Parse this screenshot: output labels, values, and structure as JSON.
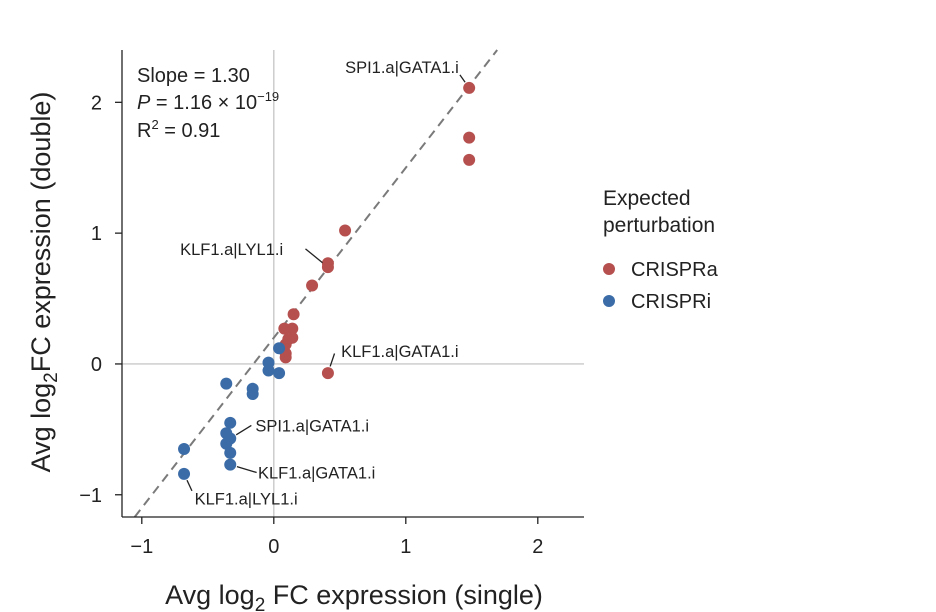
{
  "chart_data": {
    "type": "scatter",
    "xlabel": {
      "prefix": "Avg log",
      "sub": "2",
      "suffix": " FC expression (single)"
    },
    "ylabel": {
      "prefix": "Avg log",
      "sub": "2",
      "suffix": "FC expression (double)"
    },
    "xlim": [
      -1.15,
      2.35
    ],
    "ylim": [
      -1.17,
      2.4
    ],
    "xticks": [
      -1,
      0,
      1,
      2
    ],
    "yticks": [
      -1,
      0,
      1,
      2
    ],
    "xtick_labels": [
      "−1",
      "0",
      "1",
      "2"
    ],
    "ytick_labels": [
      "−1",
      "0",
      "1",
      "2"
    ],
    "reference_lines": {
      "x": 0,
      "y": 0
    },
    "fit_line": {
      "slope": 1.3,
      "intercept": 0.2,
      "style": "dashed"
    },
    "stats": {
      "slope": "Slope = 1.30",
      "p_label": "P",
      "p_value": " = 1.16 × 10",
      "p_exp": "−19",
      "r2_label": "R",
      "r2_exp": "2",
      "r2_value": " = 0.91"
    },
    "legend": {
      "title_line1": "Expected",
      "title_line2": "perturbation",
      "placement": "right",
      "items": [
        {
          "label": "CRISPRa",
          "color": "#b5504f"
        },
        {
          "label": "CRISPRi",
          "color": "#3b6ca8"
        }
      ]
    },
    "series": [
      {
        "name": "CRISPRa",
        "color": "#b5504f",
        "points": [
          {
            "x": 1.48,
            "y": 2.11
          },
          {
            "x": 1.48,
            "y": 1.73
          },
          {
            "x": 1.48,
            "y": 1.56
          },
          {
            "x": 0.54,
            "y": 1.02
          },
          {
            "x": 0.41,
            "y": 0.77
          },
          {
            "x": 0.41,
            "y": 0.74
          },
          {
            "x": 0.29,
            "y": 0.6
          },
          {
            "x": 0.15,
            "y": 0.38
          },
          {
            "x": 0.08,
            "y": 0.27
          },
          {
            "x": 0.14,
            "y": 0.27
          },
          {
            "x": 0.14,
            "y": 0.2
          },
          {
            "x": 0.11,
            "y": 0.19
          },
          {
            "x": 0.09,
            "y": 0.15
          },
          {
            "x": 0.09,
            "y": 0.08
          },
          {
            "x": 0.09,
            "y": 0.05
          },
          {
            "x": 0.41,
            "y": -0.07
          }
        ]
      },
      {
        "name": "CRISPRi",
        "color": "#3b6ca8",
        "points": [
          {
            "x": 0.04,
            "y": 0.12
          },
          {
            "x": -0.04,
            "y": 0.01
          },
          {
            "x": -0.04,
            "y": -0.05
          },
          {
            "x": 0.04,
            "y": -0.07
          },
          {
            "x": -0.36,
            "y": -0.15
          },
          {
            "x": -0.16,
            "y": -0.19
          },
          {
            "x": -0.16,
            "y": -0.23
          },
          {
            "x": -0.33,
            "y": -0.45
          },
          {
            "x": -0.36,
            "y": -0.53
          },
          {
            "x": -0.33,
            "y": -0.57
          },
          {
            "x": -0.36,
            "y": -0.61
          },
          {
            "x": -0.33,
            "y": -0.68
          },
          {
            "x": -0.33,
            "y": -0.77
          },
          {
            "x": -0.68,
            "y": -0.65
          },
          {
            "x": -0.68,
            "y": -0.84
          }
        ]
      }
    ],
    "annotations": [
      {
        "text": "SPI1.a|GATA1.i",
        "x": 1.48,
        "y": 2.11,
        "label_x": 0.54,
        "label_y": 2.27,
        "anchor": "start",
        "line_from": [
          1.41,
          2.21
        ]
      },
      {
        "text": "KLF1.a|LYL1.i",
        "x": 0.41,
        "y": 0.74,
        "label_x": -0.71,
        "label_y": 0.88,
        "anchor": "start",
        "line_from": [
          0.24,
          0.88
        ]
      },
      {
        "text": "KLF1.a|GATA1.i",
        "x": 0.41,
        "y": -0.07,
        "label_x": 0.51,
        "label_y": 0.1,
        "anchor": "start",
        "line_from": [
          0.46,
          0.08
        ]
      },
      {
        "text": "SPI1.a|GATA1.i",
        "x": -0.33,
        "y": -0.57,
        "label_x": -0.14,
        "label_y": -0.47,
        "anchor": "start",
        "line_from": [
          -0.17,
          -0.47
        ]
      },
      {
        "text": "KLF1.a|GATA1.i",
        "x": -0.33,
        "y": -0.77,
        "label_x": -0.12,
        "label_y": -0.83,
        "anchor": "start",
        "line_from": [
          -0.13,
          -0.83
        ]
      },
      {
        "text": "KLF1.a|LYL1.i",
        "x": -0.68,
        "y": -0.84,
        "label_x": -0.6,
        "label_y": -1.03,
        "anchor": "start",
        "line_from": [
          -0.62,
          -0.97
        ]
      }
    ]
  }
}
